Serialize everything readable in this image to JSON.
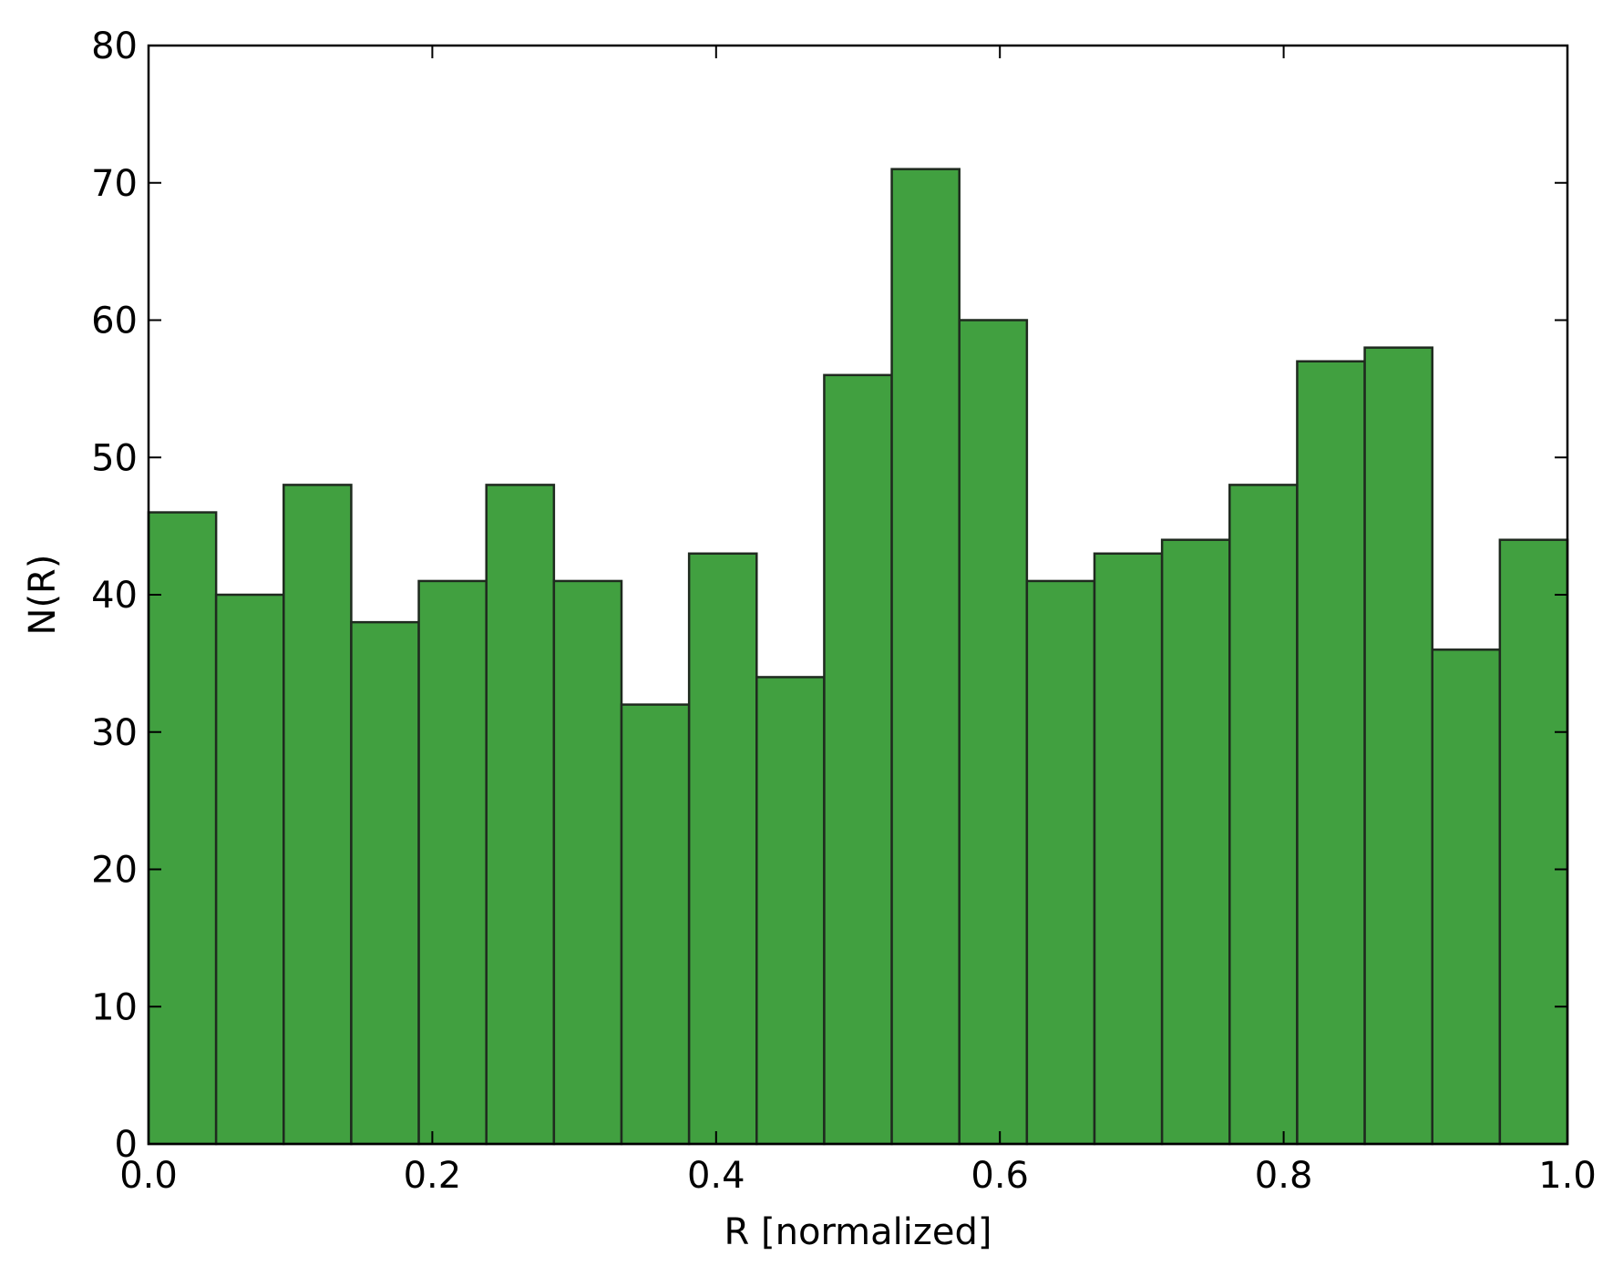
{
  "chart_data": {
    "type": "bar",
    "title": "",
    "xlabel": "R [normalized]",
    "ylabel": "N(R)",
    "xlim": [
      0.0,
      1.0
    ],
    "ylim": [
      0,
      80
    ],
    "x_ticks": [
      "0.0",
      "0.2",
      "0.4",
      "0.6",
      "0.8",
      "1.0"
    ],
    "y_ticks": [
      "0",
      "10",
      "20",
      "30",
      "40",
      "50",
      "60",
      "70",
      "80"
    ],
    "bin_count": 21,
    "values": [
      46,
      40,
      48,
      38,
      41,
      48,
      41,
      32,
      43,
      34,
      56,
      71,
      60,
      41,
      43,
      44,
      48,
      57,
      58,
      36,
      44
    ],
    "grid": false,
    "legend": "none",
    "bar_color": "#41a040",
    "edge_color": "#1f2a1f"
  }
}
